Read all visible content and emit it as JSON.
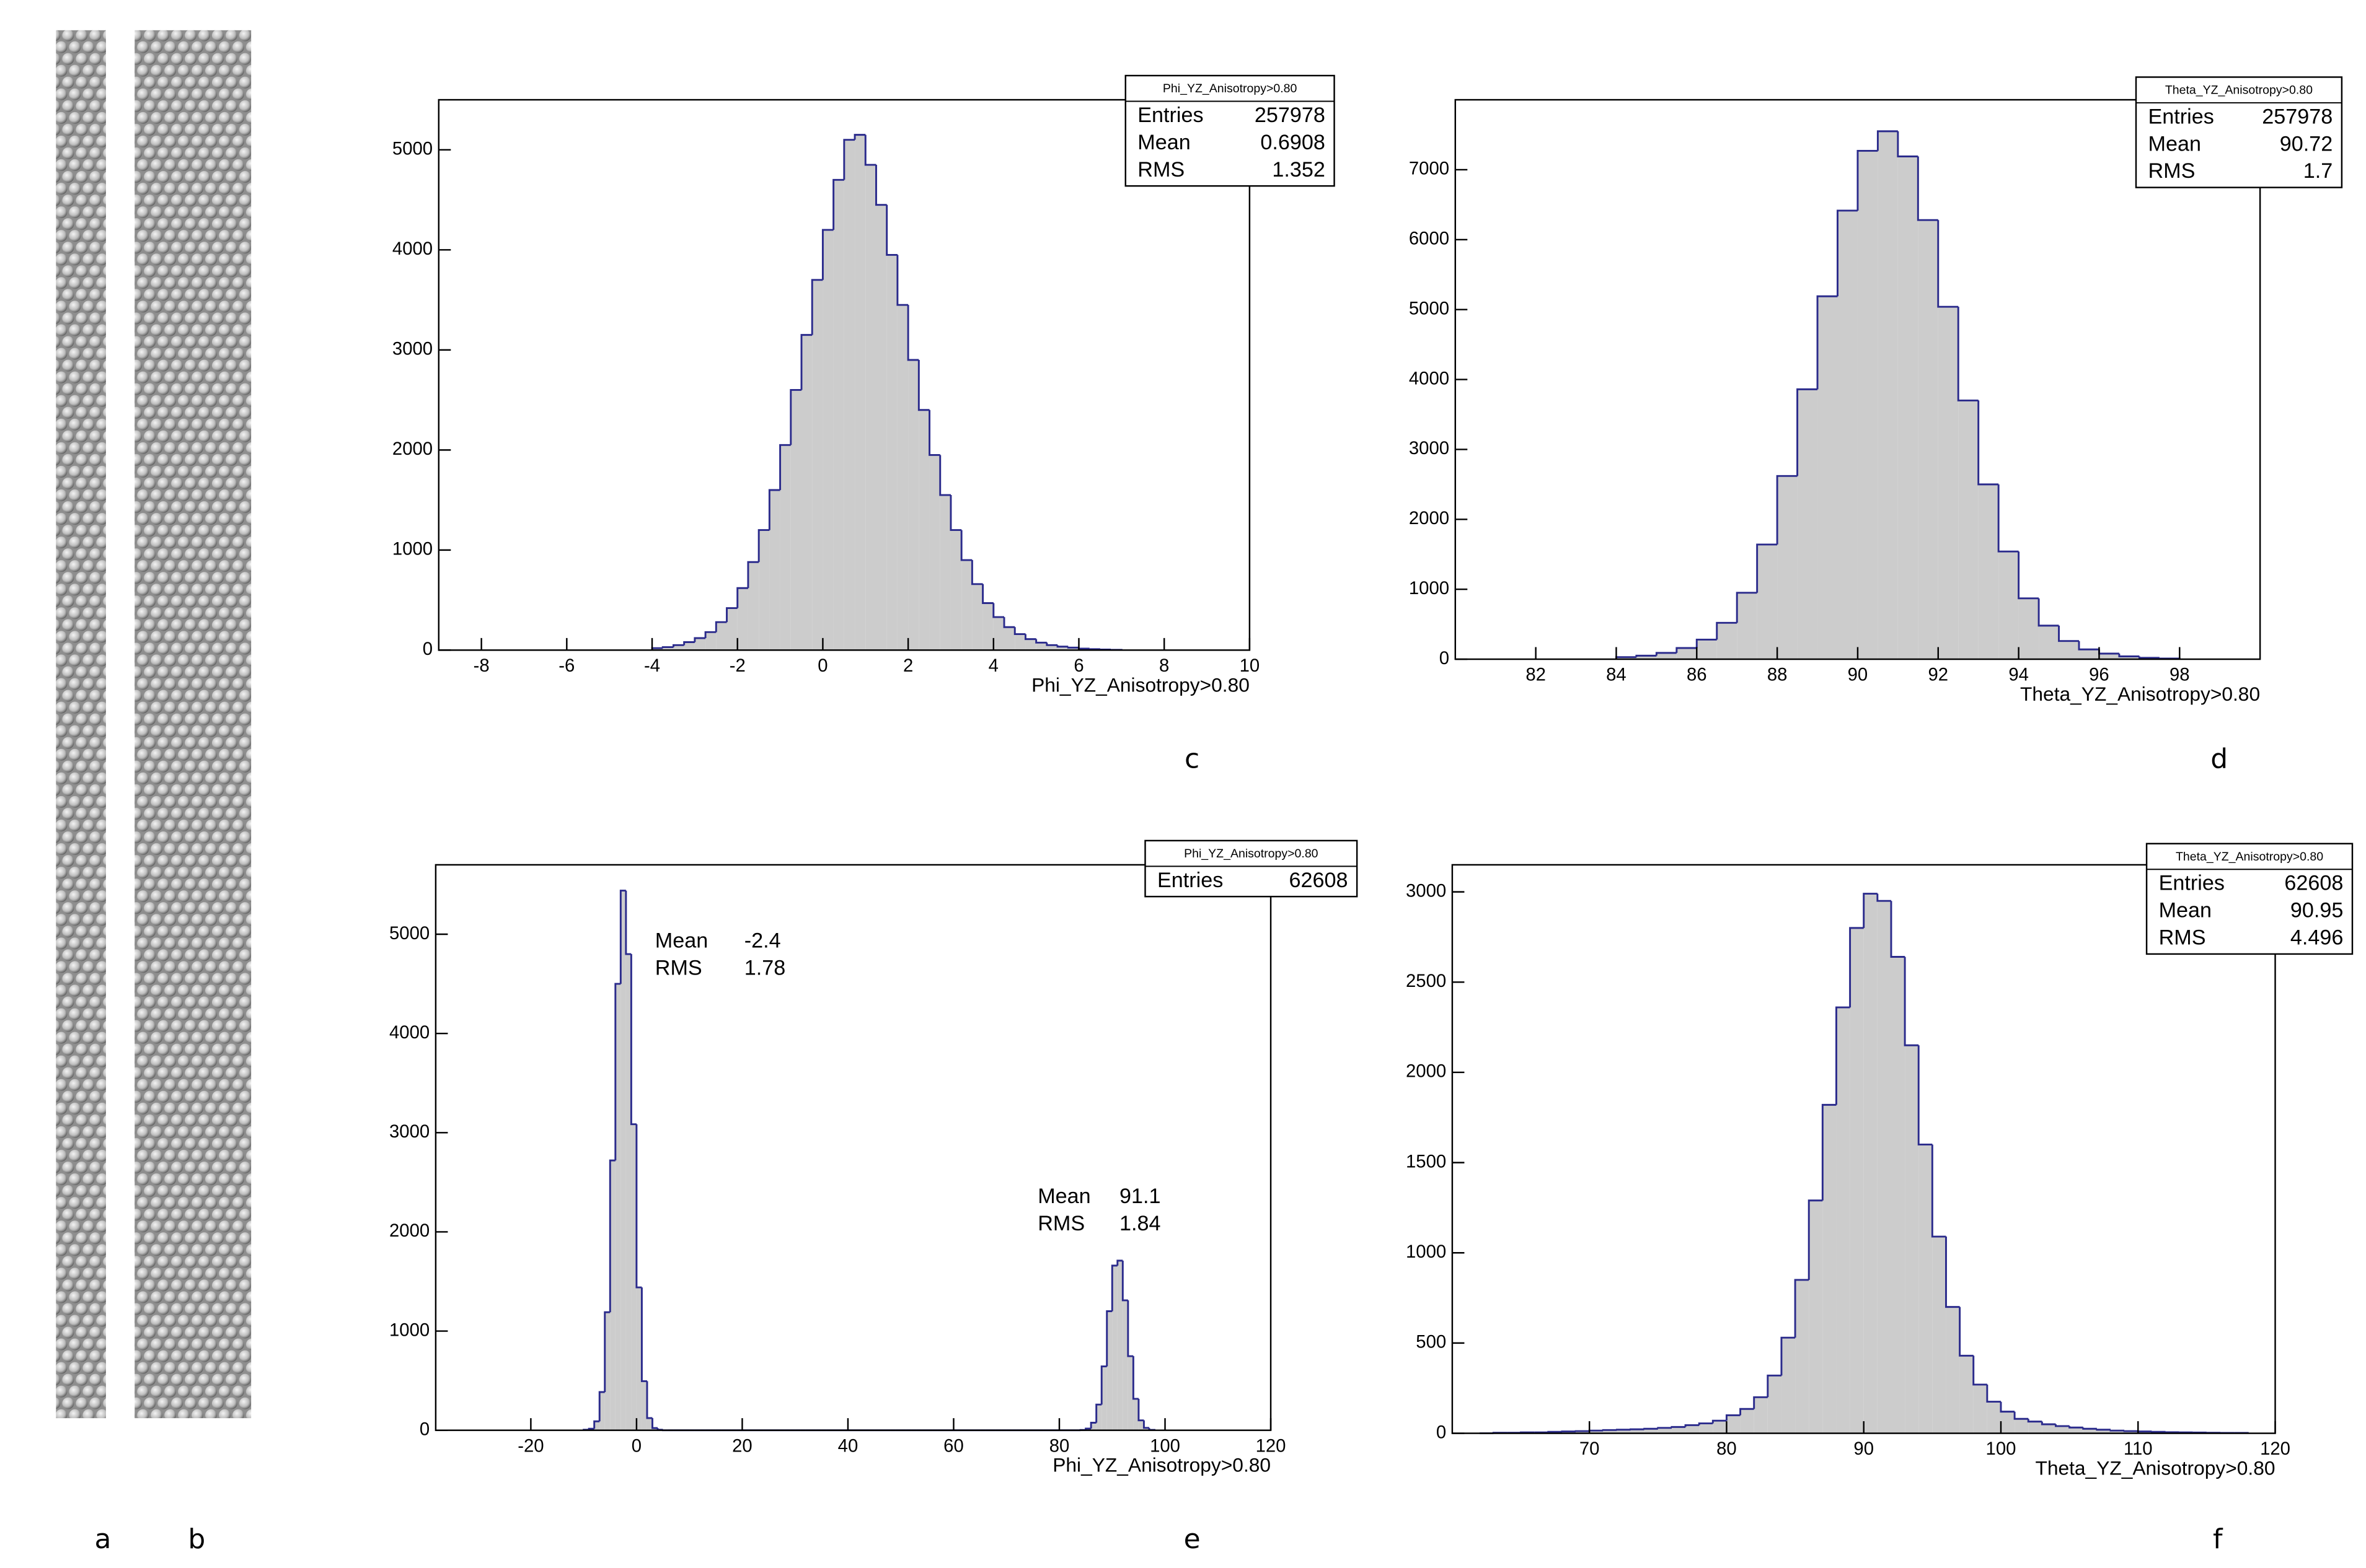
{
  "images": [
    {
      "label": "a"
    },
    {
      "label": "b"
    }
  ],
  "chart_data": [
    {
      "type": "histogram",
      "panel_label": "c",
      "xlabel": "Phi_YZ_Anisotropy>0.80",
      "color": "#cccccc",
      "edge_color": "#2b2b8c",
      "xlim": [
        -9,
        10
      ],
      "ylim": [
        0,
        5500
      ],
      "xticks": [
        -8,
        -6,
        -4,
        -2,
        0,
        2,
        4,
        6,
        8,
        10
      ],
      "yticks": [
        0,
        1000,
        2000,
        3000,
        4000,
        5000
      ],
      "bins": [
        -4,
        -3.75,
        -3.5,
        -3.25,
        -3,
        -2.75,
        -2.5,
        -2.25,
        -2,
        -1.75,
        -1.5,
        -1.25,
        -1,
        -0.75,
        -0.5,
        -0.25,
        0,
        0.25,
        0.5,
        0.75,
        1,
        1.25,
        1.5,
        1.75,
        2,
        2.25,
        2.5,
        2.75,
        3,
        3.25,
        3.5,
        3.75,
        4,
        4.25,
        4.5,
        4.75,
        5,
        5.25,
        5.5,
        5.75,
        6,
        6.25,
        6.5,
        6.75,
        7
      ],
      "counts": [
        20,
        30,
        50,
        80,
        120,
        180,
        280,
        420,
        620,
        880,
        1200,
        1600,
        2050,
        2600,
        3150,
        3700,
        4200,
        4700,
        5100,
        5150,
        4850,
        4450,
        3950,
        3450,
        2900,
        2400,
        1950,
        1550,
        1200,
        900,
        660,
        470,
        330,
        230,
        160,
        110,
        75,
        50,
        35,
        25,
        15,
        10,
        6,
        3
      ],
      "stats_box": {
        "title": "Phi_YZ_Anisotropy>0.80",
        "rows": [
          {
            "label": "Entries",
            "value": 257978
          },
          {
            "label": "Mean",
            "value": 0.6908
          },
          {
            "label": "RMS",
            "value": 1.352
          }
        ]
      }
    },
    {
      "type": "histogram",
      "panel_label": "d",
      "xlabel": "Theta_YZ_Anisotropy>0.80",
      "color": "#cccccc",
      "edge_color": "#2b2b8c",
      "xlim": [
        80,
        100
      ],
      "ylim": [
        0,
        8000
      ],
      "xticks": [
        82,
        84,
        86,
        88,
        90,
        92,
        94,
        96,
        98
      ],
      "yticks": [
        0,
        1000,
        2000,
        3000,
        4000,
        5000,
        6000,
        7000
      ],
      "bins": [
        84,
        84.5,
        85,
        85.5,
        86,
        86.5,
        87,
        87.5,
        88,
        88.5,
        89,
        89.5,
        90,
        90.5,
        91,
        91.5,
        92,
        92.5,
        93,
        93.5,
        94,
        94.5,
        95,
        95.5,
        96,
        96.5,
        97,
        97.5,
        98
      ],
      "counts": [
        30,
        50,
        90,
        160,
        280,
        520,
        950,
        1640,
        2620,
        3860,
        5190,
        6415,
        7270,
        7550,
        7190,
        6280,
        5040,
        3700,
        2500,
        1540,
        870,
        480,
        260,
        140,
        80,
        40,
        20,
        10
      ],
      "stats_box": {
        "title": "Theta_YZ_Anisotropy>0.80",
        "rows": [
          {
            "label": "Entries",
            "value": 257978
          },
          {
            "label": "Mean",
            "value": 90.72
          },
          {
            "label": "RMS",
            "value": 1.7
          }
        ]
      }
    },
    {
      "type": "histogram",
      "panel_label": "e",
      "xlabel": "Phi_YZ_Anisotropy>0.80",
      "color": "#cccccc",
      "edge_color": "#2b2b8c",
      "xlim": [
        -38,
        120
      ],
      "ylim": [
        0,
        5700
      ],
      "xticks": [
        -20,
        0,
        20,
        40,
        60,
        80,
        100,
        120
      ],
      "yticks": [
        0,
        1000,
        2000,
        3000,
        4000,
        5000
      ],
      "bins": [
        -10,
        -9,
        -8,
        -7,
        -6,
        -5,
        -4,
        -3,
        -2,
        -1,
        0,
        1,
        2,
        3,
        4,
        5,
        6,
        7,
        8,
        9,
        10,
        11,
        12,
        13,
        14,
        15,
        16,
        17,
        18,
        19,
        20,
        21,
        22,
        23,
        24,
        25,
        26,
        27,
        28,
        29,
        30,
        31,
        32,
        33,
        34,
        35,
        36,
        37,
        38,
        39,
        40,
        41,
        42,
        43,
        44,
        45,
        46,
        47,
        48,
        49,
        50,
        51,
        52,
        53,
        54,
        55,
        56,
        57,
        58,
        59,
        60,
        61,
        62,
        63,
        64,
        65,
        66,
        67,
        68,
        69,
        70,
        71,
        72,
        73,
        74,
        75,
        76,
        77,
        78,
        79,
        80,
        81,
        82,
        83,
        84,
        85,
        86,
        87,
        88,
        89,
        90,
        91,
        92,
        93,
        94,
        95,
        96,
        97,
        98
      ],
      "counts": [
        5,
        15,
        90,
        385,
        1190,
        2720,
        4500,
        5440,
        4800,
        3085,
        1440,
        495,
        123,
        22,
        5,
        0,
        0,
        0,
        0,
        0,
        0,
        0,
        0,
        0,
        0,
        0,
        0,
        0,
        0,
        0,
        0,
        0,
        0,
        0,
        0,
        0,
        0,
        0,
        0,
        0,
        0,
        0,
        0,
        0,
        0,
        0,
        0,
        0,
        0,
        0,
        0,
        0,
        0,
        0,
        0,
        0,
        0,
        0,
        0,
        0,
        0,
        0,
        0,
        0,
        0,
        0,
        0,
        0,
        0,
        0,
        0,
        0,
        0,
        0,
        0,
        0,
        0,
        0,
        0,
        0,
        0,
        0,
        0,
        0,
        0,
        0,
        0,
        0,
        0,
        0,
        0,
        0,
        0,
        0,
        3,
        17,
        76,
        259,
        644,
        1200,
        1660,
        1710,
        1310,
        747,
        317,
        100,
        24,
        4
      ],
      "stats_box": {
        "title": "Phi_YZ_Anisotropy>0.80",
        "rows": [
          {
            "label": "Entries",
            "value": 62608
          }
        ]
      },
      "annotations": [
        {
          "rows": [
            {
              "label": "Mean",
              "value": -2.4
            },
            {
              "label": "RMS",
              "value": 1.78
            }
          ]
        },
        {
          "rows": [
            {
              "label": "Mean",
              "value": 91.1
            },
            {
              "label": "RMS",
              "value": 1.84
            }
          ]
        }
      ]
    },
    {
      "type": "histogram",
      "panel_label": "f",
      "xlabel": "Theta_YZ_Anisotropy>0.80",
      "color": "#cccccc",
      "edge_color": "#2b2b8c",
      "xlim": [
        60,
        120
      ],
      "ylim": [
        0,
        3150
      ],
      "xticks": [
        70,
        80,
        90,
        100,
        110,
        120
      ],
      "yticks": [
        0,
        500,
        1000,
        1500,
        2000,
        2500,
        3000
      ],
      "bins": [
        62,
        63,
        64,
        65,
        66,
        67,
        68,
        69,
        70,
        71,
        72,
        73,
        74,
        75,
        76,
        77,
        78,
        79,
        80,
        81,
        82,
        83,
        84,
        85,
        86,
        87,
        88,
        89,
        90,
        91,
        92,
        93,
        94,
        95,
        96,
        97,
        98,
        99,
        100,
        101,
        102,
        103,
        104,
        105,
        106,
        107,
        108,
        109,
        110,
        111,
        112,
        113,
        114,
        115,
        116,
        117,
        118
      ],
      "counts": [
        0,
        3,
        3,
        5,
        5,
        8,
        10,
        12,
        15,
        18,
        20,
        22,
        25,
        30,
        35,
        45,
        55,
        70,
        100,
        135,
        200,
        320,
        530,
        850,
        1290,
        1820,
        2360,
        2800,
        2990,
        2950,
        2640,
        2150,
        1600,
        1090,
        700,
        430,
        270,
        175,
        120,
        80,
        65,
        50,
        40,
        32,
        25,
        20,
        15,
        12,
        10,
        8,
        6,
        5,
        4,
        3,
        2,
        2
      ],
      "stats_box": {
        "title": "Theta_YZ_Anisotropy>0.80",
        "rows": [
          {
            "label": "Entries",
            "value": 62608
          },
          {
            "label": "Mean",
            "value": 90.95
          },
          {
            "label": "RMS",
            "value": 4.496
          }
        ]
      }
    }
  ]
}
